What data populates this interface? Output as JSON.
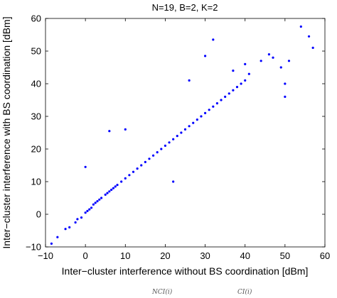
{
  "chart_data": {
    "type": "scatter",
    "title": "N=19, B=2, K=2",
    "xlabel": "Inter−cluster interference without BS coordination [dBm]",
    "ylabel": "Inter−cluster interference with BS coordination [dBm]",
    "xlim": [
      -10,
      60
    ],
    "ylim": [
      -10,
      60
    ],
    "xticks": [
      -10,
      0,
      10,
      20,
      30,
      40,
      50,
      60
    ],
    "yticks": [
      -10,
      0,
      10,
      20,
      30,
      40,
      50,
      60
    ],
    "grid": false,
    "marker_color": "#0000ff",
    "series": [
      {
        "points": [
          [
            -8.5,
            -9
          ],
          [
            -7,
            -7
          ],
          [
            -5,
            -4.5
          ],
          [
            -4,
            -4
          ],
          [
            -2.5,
            -2.5
          ],
          [
            -2,
            -1.5
          ],
          [
            -1,
            -1
          ],
          [
            0,
            0.5
          ],
          [
            0,
            14.5
          ],
          [
            0.5,
            1
          ],
          [
            1,
            1.5
          ],
          [
            1.5,
            2
          ],
          [
            2,
            3
          ],
          [
            2.5,
            3.5
          ],
          [
            3,
            4
          ],
          [
            3.5,
            4.5
          ],
          [
            4,
            5
          ],
          [
            5,
            6
          ],
          [
            5.5,
            6.5
          ],
          [
            6,
            7
          ],
          [
            6,
            25.5
          ],
          [
            6.5,
            7.5
          ],
          [
            7,
            8
          ],
          [
            7.5,
            8.5
          ],
          [
            8,
            9
          ],
          [
            9,
            10
          ],
          [
            10,
            11
          ],
          [
            10,
            26
          ],
          [
            11,
            12
          ],
          [
            12,
            13
          ],
          [
            13,
            14
          ],
          [
            14,
            15
          ],
          [
            15,
            16
          ],
          [
            16,
            17
          ],
          [
            17,
            18
          ],
          [
            18,
            19
          ],
          [
            19,
            20
          ],
          [
            20,
            21
          ],
          [
            21,
            22
          ],
          [
            22,
            23
          ],
          [
            23,
            24
          ],
          [
            24,
            25
          ],
          [
            25,
            26
          ],
          [
            26,
            27
          ],
          [
            27,
            28
          ],
          [
            28,
            29
          ],
          [
            29,
            30
          ],
          [
            30,
            31
          ],
          [
            31,
            32
          ],
          [
            32,
            33
          ],
          [
            33,
            34
          ],
          [
            34,
            35
          ],
          [
            35,
            36
          ],
          [
            36,
            37
          ],
          [
            37,
            38
          ],
          [
            38,
            39
          ],
          [
            39,
            40
          ],
          [
            40,
            41
          ],
          [
            41,
            43
          ],
          [
            22,
            10
          ],
          [
            26,
            41
          ],
          [
            30,
            48.5
          ],
          [
            32,
            53.5
          ],
          [
            37,
            44
          ],
          [
            40,
            46
          ],
          [
            44,
            47
          ],
          [
            46,
            49
          ],
          [
            47,
            48
          ],
          [
            49,
            45
          ],
          [
            50,
            40
          ],
          [
            50,
            36
          ],
          [
            51,
            47
          ],
          [
            54,
            57.5
          ],
          [
            56,
            54.5
          ],
          [
            57,
            51
          ]
        ]
      }
    ]
  },
  "footer": {
    "formula_left": "NCI(i)",
    "formula_right": "CI(i)"
  }
}
